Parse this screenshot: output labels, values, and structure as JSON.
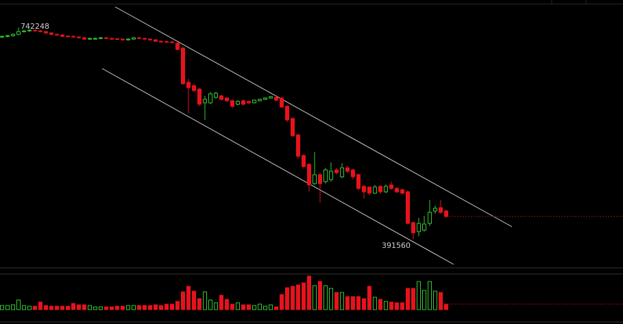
{
  "chart_data": {
    "type": "candlestick",
    "open": [
      726400,
      727500,
      728600,
      730900,
      735400,
      736600,
      737700,
      736600,
      735400,
      733200,
      730900,
      729800,
      728000,
      727500,
      726400,
      725200,
      723000,
      723600,
      724100,
      725200,
      724100,
      723500,
      723000,
      721800,
      723000,
      725200,
      724100,
      723000,
      721800,
      719500,
      718900,
      718400,
      716100,
      708200,
      651500,
      645800,
      640100,
      617400,
      617400,
      626500,
      628800,
      625300,
      620800,
      615100,
      620800,
      619700,
      617400,
      620800,
      623100,
      625300,
      626500,
      625300,
      611700,
      591300,
      564100,
      530000,
      515300,
      483500,
      498200,
      486900,
      490300,
      506200,
      494800,
      509600,
      506200,
      498200,
      478900,
      477800,
      467600,
      478900,
      469900,
      481200,
      475500,
      473300,
      469900,
      418800,
      404000,
      406300,
      417600,
      438100,
      443700,
      438100
    ],
    "high": [
      729000,
      730100,
      732400,
      742248,
      738100,
      739200,
      739200,
      738100,
      736900,
      734700,
      732400,
      731300,
      729500,
      729000,
      727900,
      726700,
      725600,
      725600,
      726700,
      726700,
      725600,
      725000,
      724500,
      724500,
      726700,
      726700,
      725600,
      724500,
      723300,
      721000,
      720400,
      719900,
      718400,
      710500,
      657100,
      649200,
      642400,
      628800,
      635600,
      635600,
      631000,
      627600,
      623100,
      621900,
      623100,
      620800,
      623100,
      624200,
      626500,
      628800,
      628800,
      627600,
      614000,
      593600,
      566300,
      532300,
      517500,
      535700,
      501600,
      509600,
      518700,
      509600,
      517500,
      513000,
      508400,
      500500,
      481200,
      478900,
      481200,
      481200,
      482300,
      486900,
      477800,
      475500,
      472100,
      421000,
      426700,
      430100,
      456200,
      447200,
      456200,
      440300
    ],
    "low": [
      724900,
      726000,
      727100,
      729400,
      733900,
      735100,
      735100,
      733900,
      731700,
      729400,
      728300,
      726000,
      726000,
      724900,
      723700,
      721500,
      721500,
      722100,
      722600,
      722600,
      721500,
      721500,
      720300,
      720300,
      721500,
      722600,
      721500,
      720300,
      718000,
      716900,
      716900,
      715800,
      704800,
      646900,
      600400,
      634400,
      611700,
      589000,
      615100,
      624200,
      620800,
      618500,
      608300,
      612900,
      612900,
      615100,
      616300,
      619700,
      621900,
      624200,
      619700,
      608300,
      585600,
      560700,
      524300,
      508400,
      469900,
      481200,
      451700,
      483500,
      486900,
      498200,
      492600,
      500500,
      490300,
      472100,
      458500,
      464200,
      466400,
      466400,
      467600,
      473300,
      467600,
      465300,
      415400,
      391560,
      396100,
      404000,
      413100,
      433500,
      433500,
      426700
    ],
    "close": [
      727500,
      728600,
      730900,
      735400,
      736600,
      737700,
      736600,
      735400,
      733200,
      730900,
      729800,
      727500,
      727500,
      726400,
      725200,
      723000,
      724100,
      724100,
      725200,
      724100,
      723000,
      723000,
      721800,
      723000,
      725200,
      724100,
      723000,
      721800,
      719500,
      718400,
      718400,
      717300,
      705900,
      649200,
      642400,
      637800,
      615100,
      623100,
      632200,
      633300,
      623100,
      620800,
      611700,
      619700,
      615100,
      617400,
      621900,
      623100,
      625300,
      627600,
      621900,
      610600,
      589000,
      562900,
      528900,
      511800,
      481200,
      498200,
      483500,
      506200,
      503900,
      501600,
      509600,
      503900,
      494800,
      475500,
      469900,
      467600,
      477800,
      469900,
      478900,
      475500,
      469900,
      467600,
      417600,
      401800,
      417600,
      416500,
      435800,
      442600,
      435800,
      429000
    ],
    "volume": [
      6,
      6,
      7,
      14,
      6,
      5,
      5,
      11,
      6,
      5,
      5,
      5,
      5,
      9,
      7,
      7,
      6,
      4,
      4,
      4,
      4,
      5,
      5,
      6,
      6,
      6,
      6,
      6,
      7,
      6,
      8,
      8,
      12,
      26,
      34,
      27,
      16,
      26,
      14,
      10,
      21,
      15,
      8,
      10,
      7,
      7,
      6,
      8,
      5,
      7,
      4,
      22,
      32,
      34,
      36,
      39,
      49,
      35,
      41,
      35,
      31,
      25,
      25,
      19,
      19,
      19,
      16,
      34,
      18,
      15,
      12,
      11,
      10,
      10,
      31,
      31,
      41,
      28,
      41,
      27,
      25,
      8
    ],
    "ylim": [
      345000,
      781000
    ],
    "vlim": [
      0,
      55
    ],
    "up_color": "#33cc33",
    "down_color": "#e8121c"
  }
}
